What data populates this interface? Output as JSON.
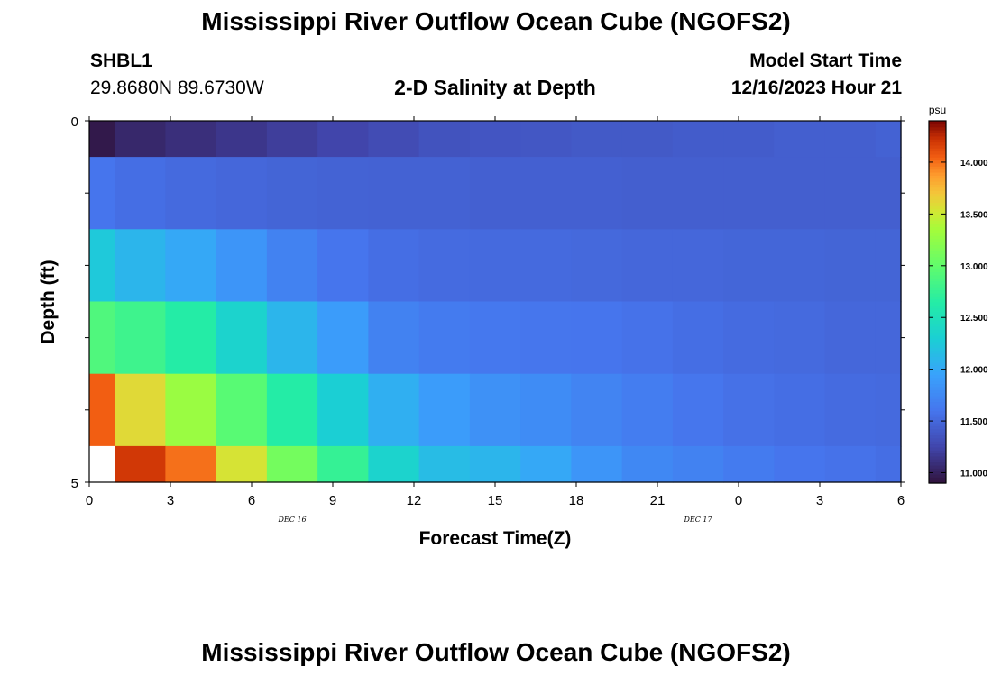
{
  "title": "Mississippi River Outflow Ocean Cube (NGOFS2)",
  "title_repeat": "Mississippi River Outflow Ocean Cube (NGOFS2)",
  "station": {
    "name": "SHBL1",
    "coords": "29.8680N  89.6730W"
  },
  "plot_subtitle": "2-D Salinity at Depth",
  "model_start": {
    "label": "Model Start Time",
    "value": "12/16/2023 Hour 21"
  },
  "chart_data": {
    "type": "heatmap",
    "title": "2-D Salinity at Depth",
    "xlabel": "Forecast Time(Z)",
    "ylabel": "Depth (ft)",
    "x_tick_labels": [
      "0",
      "3",
      "6",
      "9",
      "12",
      "15",
      "18",
      "21",
      "0",
      "3",
      "6"
    ],
    "x_range_hours": [
      0,
      48
    ],
    "date_labels": [
      {
        "text": "DEC 16",
        "hour": 12
      },
      {
        "text": "DEC 17",
        "hour": 36
      }
    ],
    "y_tick_labels": [
      "0",
      "5"
    ],
    "y_range": [
      0,
      5
    ],
    "colorbar": {
      "unit": "psu",
      "min": 10.9,
      "max": 14.4,
      "ticks": [
        "11.000",
        "11.500",
        "12.000",
        "12.500",
        "13.000",
        "13.500",
        "14.000"
      ],
      "tick_values": [
        11.0,
        11.5,
        12.0,
        12.5,
        13.0,
        13.5,
        14.0
      ]
    },
    "columns_hours": [
      0,
      1,
      4,
      7,
      10,
      13,
      16,
      19,
      22,
      25,
      28,
      31,
      34,
      37,
      40,
      43,
      46,
      48
    ],
    "time_bin_edges": [
      0,
      1.5,
      4.5,
      7.5,
      10.5,
      13.5,
      16.5,
      19.5,
      22.5,
      25.5,
      28.5,
      31.5,
      34.5,
      37.5,
      40.5,
      43.5,
      46.5,
      48
    ],
    "depth_bin_edges": [
      0,
      0.5,
      1.5,
      2.5,
      3.5,
      4.5,
      5
    ],
    "values": [
      [
        10.95,
        11.05,
        11.1,
        11.15,
        11.2,
        11.25,
        11.3,
        11.35,
        11.37,
        11.38,
        11.4,
        11.4,
        11.42,
        11.42,
        11.44,
        11.44,
        11.46
      ],
      [
        11.6,
        11.55,
        11.52,
        11.5,
        11.48,
        11.47,
        11.46,
        11.46,
        11.45,
        11.45,
        11.45,
        11.44,
        11.44,
        11.44,
        11.44,
        11.44,
        11.44
      ],
      [
        12.25,
        12.1,
        12.0,
        11.85,
        11.7,
        11.6,
        11.55,
        11.53,
        11.52,
        11.52,
        11.51,
        11.5,
        11.5,
        11.49,
        11.49,
        11.48,
        11.48
      ],
      [
        12.9,
        12.8,
        12.65,
        12.35,
        12.1,
        11.9,
        11.7,
        11.65,
        11.62,
        11.61,
        11.6,
        11.58,
        11.55,
        11.53,
        11.52,
        11.5,
        11.5
      ],
      [
        14.05,
        13.6,
        13.3,
        12.95,
        12.65,
        12.3,
        12.05,
        11.9,
        11.82,
        11.78,
        11.72,
        11.66,
        11.61,
        11.57,
        11.55,
        11.53,
        11.52
      ],
      [
        null,
        14.2,
        14.0,
        13.55,
        13.1,
        12.75,
        12.35,
        12.15,
        12.1,
        12.0,
        11.85,
        11.75,
        11.7,
        11.65,
        11.6,
        11.58,
        11.55
      ]
    ]
  }
}
